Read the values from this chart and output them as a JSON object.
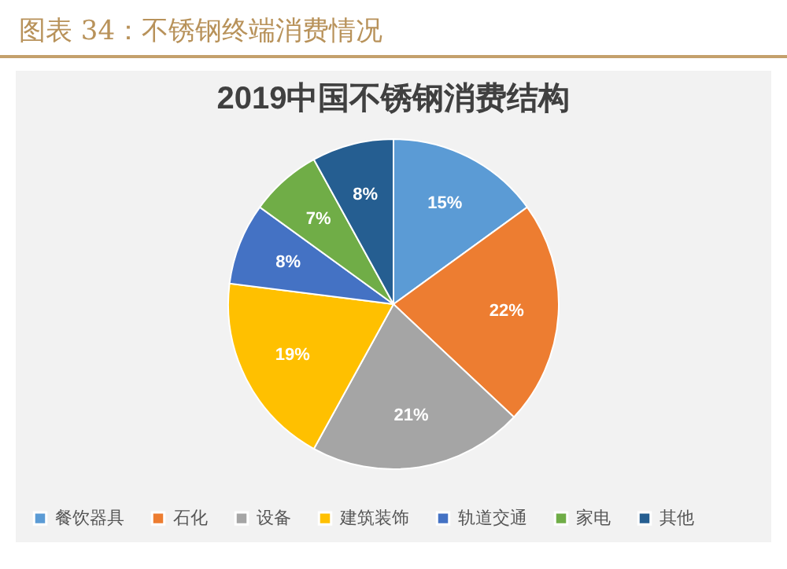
{
  "chart_data": {
    "type": "pie",
    "title": "图表 34：不锈钢终端消费情况",
    "subtitle": "2019中国不锈钢消费结构",
    "categories": [
      "餐饮器具",
      "石化",
      "设备",
      "建筑装饰",
      "轨道交通",
      "家电",
      "其他"
    ],
    "values": [
      15,
      22,
      21,
      19,
      8,
      7,
      8
    ],
    "colors": [
      "#5b9bd5",
      "#ed7d31",
      "#a5a5a5",
      "#ffc000",
      "#4472c4",
      "#70ad47",
      "#255e91"
    ],
    "value_labels": [
      "15%",
      "22%",
      "21%",
      "19%",
      "8%",
      "7%",
      "8%"
    ],
    "legend": "bottom"
  }
}
